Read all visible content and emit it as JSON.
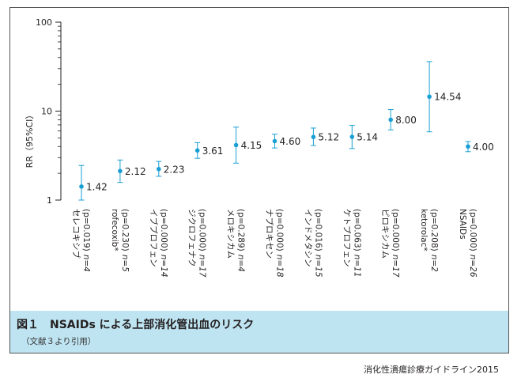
{
  "chart_data": {
    "type": "scatter",
    "ylabel": "RR（95%CI）",
    "yscale": "log",
    "ylim": [
      1,
      100
    ],
    "yticks": [
      1,
      10,
      100
    ],
    "ytick_labels": [
      "1",
      "10",
      "100"
    ],
    "accent_color": "#1a9fd4",
    "categories": [
      {
        "name": "セレコキシブ",
        "p": "(p=0.019)",
        "n": "n=4",
        "rr": 1.42,
        "rr_label": "1.42",
        "ci_low": 1.0,
        "ci_high": 2.45
      },
      {
        "name": "rofecoxib*",
        "p": "(p=0.230)",
        "n": "n=5",
        "rr": 2.12,
        "rr_label": "2.12",
        "ci_low": 1.58,
        "ci_high": 2.82
      },
      {
        "name": "イブプロフェン",
        "p": "(p=0.000)",
        "n": "n=14",
        "rr": 2.23,
        "rr_label": "2.23",
        "ci_low": 1.85,
        "ci_high": 2.72
      },
      {
        "name": "ジクロフェナク",
        "p": "(p=0.000)",
        "n": "n=17",
        "rr": 3.61,
        "rr_label": "3.61",
        "ci_low": 2.95,
        "ci_high": 4.42
      },
      {
        "name": "メロキシカム",
        "p": "(p=0.289)",
        "n": "n=4",
        "rr": 4.15,
        "rr_label": "4.15",
        "ci_low": 2.6,
        "ci_high": 6.6
      },
      {
        "name": "ナプロキセン",
        "p": "(p=0.000)",
        "n": "n=18",
        "rr": 4.6,
        "rr_label": "4.60",
        "ci_low": 3.85,
        "ci_high": 5.5
      },
      {
        "name": "インドメタシン",
        "p": "(p=0.016)",
        "n": "n=15",
        "rr": 5.12,
        "rr_label": "5.12",
        "ci_low": 4.1,
        "ci_high": 6.45
      },
      {
        "name": "ケトプロフェン",
        "p": "(p=0.063)",
        "n": "n=11",
        "rr": 5.14,
        "rr_label": "5.14",
        "ci_low": 3.8,
        "ci_high": 6.9
      },
      {
        "name": "ピロキシカム",
        "p": "(p=0.000)",
        "n": "n=17",
        "rr": 8.0,
        "rr_label": "8.00",
        "ci_low": 6.15,
        "ci_high": 10.4
      },
      {
        "name": "ketorolac*",
        "p": "(p=0.208)",
        "n": "n=2",
        "rr": 14.54,
        "rr_label": "14.54",
        "ci_low": 5.85,
        "ci_high": 36.0
      },
      {
        "name": "NSAIDs",
        "p": "(p=0.000)",
        "n": "n=26",
        "rr": 4.0,
        "rr_label": "4.00",
        "ci_low": 3.5,
        "ci_high": 4.55
      }
    ]
  },
  "caption": {
    "title": "図１　NSAIDs による上部消化管出血のリスク",
    "subtitle": "（文献３より引用）"
  },
  "footer": {
    "source": "消化性潰瘍診療ガイドライン2015"
  }
}
